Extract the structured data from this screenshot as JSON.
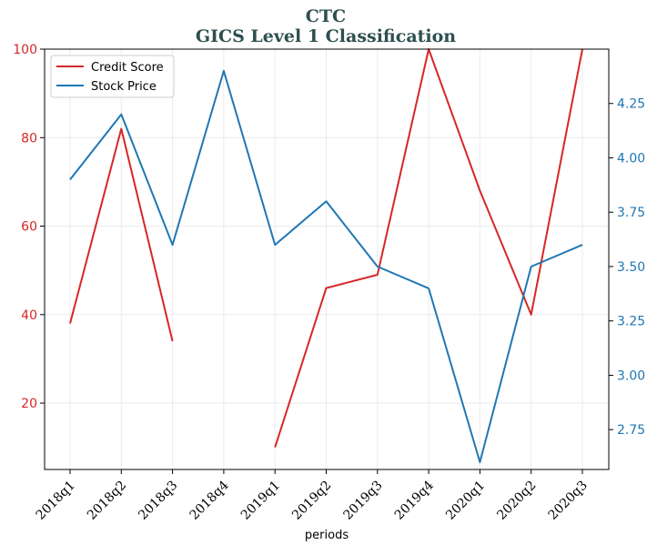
{
  "chart_data": {
    "type": "line",
    "title": "CTC",
    "subtitle": "GICS Level 1 Classification",
    "xlabel": "periods",
    "ylabel_left": "",
    "ylabel_right": "",
    "categories": [
      "2018q1",
      "2018q2",
      "2018q3",
      "2018q4",
      "2019q1",
      "2019q2",
      "2019q3",
      "2019q4",
      "2020q1",
      "2020q2",
      "2020q3"
    ],
    "grid": true,
    "legend": "top-left",
    "left_axis": {
      "ylim": [
        5,
        100
      ],
      "ticks": [
        20,
        40,
        60,
        80,
        100
      ],
      "color": "#d62728"
    },
    "right_axis": {
      "ylim": [
        2.5667,
        4.5
      ],
      "ticks": [
        2.75,
        3.0,
        3.25,
        3.5,
        3.75,
        4.0,
        4.25
      ],
      "tick_labels": [
        "2.75",
        "3.00",
        "3.25",
        "3.50",
        "3.75",
        "4.00",
        "4.25"
      ],
      "color": "#1f77b4"
    },
    "series": [
      {
        "name": "Credit Score",
        "axis": "left",
        "color": "#d62728",
        "values": [
          38,
          82,
          34,
          null,
          10,
          46,
          49,
          100,
          68,
          40,
          100
        ]
      },
      {
        "name": "Stock Price",
        "axis": "right",
        "color": "#1f77b4",
        "values": [
          3.9,
          4.2,
          3.6,
          4.4,
          3.6,
          3.8,
          3.5,
          3.4,
          2.6,
          3.5,
          3.6
        ]
      }
    ]
  }
}
